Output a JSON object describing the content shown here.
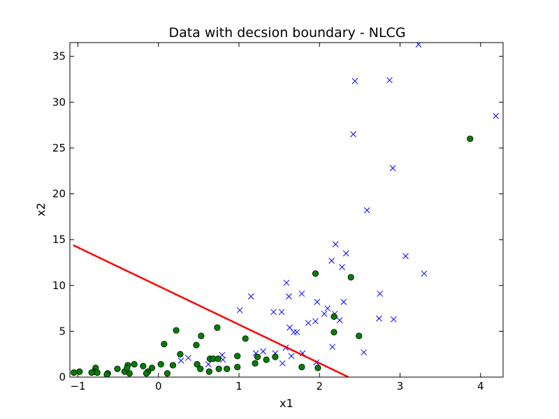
{
  "chart_data": {
    "type": "scatter",
    "title": "Data with decsion boundary - NLCG",
    "xlabel": "x1",
    "ylabel": "x2",
    "xlim": [
      -1.1,
      4.28
    ],
    "ylim": [
      0,
      36.5
    ],
    "xticks": [
      "−1",
      "0",
      "1",
      "2",
      "3",
      "4"
    ],
    "yticks": [
      "0",
      "5",
      "10",
      "15",
      "20",
      "25",
      "30",
      "35"
    ],
    "grid": false,
    "colors": {
      "positive": "#0000ff",
      "negative": "#008000",
      "boundary": "#ff0000"
    },
    "series": [
      {
        "marker": "x",
        "color": "#0000ff",
        "points": [
          [
            3.23,
            36.3
          ],
          [
            2.44,
            32.3
          ],
          [
            2.87,
            32.4
          ],
          [
            4.19,
            28.5
          ],
          [
            2.42,
            26.5
          ],
          [
            2.91,
            22.8
          ],
          [
            2.59,
            18.2
          ],
          [
            2.2,
            14.5
          ],
          [
            2.33,
            13.5
          ],
          [
            3.07,
            13.2
          ],
          [
            2.15,
            12.7
          ],
          [
            2.28,
            12.0
          ],
          [
            3.3,
            11.3
          ],
          [
            1.59,
            10.3
          ],
          [
            1.15,
            8.8
          ],
          [
            1.62,
            8.8
          ],
          [
            2.75,
            9.1
          ],
          [
            1.78,
            9.1
          ],
          [
            1.97,
            8.2
          ],
          [
            2.3,
            8.2
          ],
          [
            1.01,
            7.3
          ],
          [
            1.43,
            7.1
          ],
          [
            1.53,
            7.1
          ],
          [
            2.1,
            7.5
          ],
          [
            2.06,
            6.9
          ],
          [
            2.19,
            6.9
          ],
          [
            2.25,
            6.2
          ],
          [
            2.74,
            6.4
          ],
          [
            2.92,
            6.3
          ],
          [
            1.95,
            6.1
          ],
          [
            1.86,
            5.9
          ],
          [
            1.63,
            5.4
          ],
          [
            1.68,
            4.9
          ],
          [
            1.72,
            4.9
          ],
          [
            1.58,
            3.2
          ],
          [
            2.16,
            3.3
          ],
          [
            2.55,
            2.7
          ],
          [
            1.21,
            2.6
          ],
          [
            1.3,
            2.8
          ],
          [
            1.79,
            2.6
          ],
          [
            1.45,
            2.6
          ],
          [
            1.65,
            2.3
          ],
          [
            0.28,
            1.8
          ],
          [
            0.37,
            2.1
          ],
          [
            0.8,
            1.9
          ],
          [
            0.79,
            2.4
          ],
          [
            1.54,
            1.5
          ],
          [
            1.96,
            1.6
          ],
          [
            0.62,
            1.4
          ]
        ]
      },
      {
        "marker": "o",
        "color": "#008000",
        "points": [
          [
            3.87,
            26.0
          ],
          [
            1.95,
            11.3
          ],
          [
            2.39,
            10.9
          ],
          [
            2.18,
            6.6
          ],
          [
            0.73,
            5.4
          ],
          [
            0.22,
            5.1
          ],
          [
            0.53,
            4.5
          ],
          [
            1.08,
            4.2
          ],
          [
            2.18,
            4.9
          ],
          [
            2.49,
            4.5
          ],
          [
            0.07,
            3.6
          ],
          [
            0.47,
            3.5
          ],
          [
            0.27,
            2.5
          ],
          [
            0.64,
            2.0
          ],
          [
            0.68,
            2.0
          ],
          [
            0.74,
            2.0
          ],
          [
            0.98,
            2.3
          ],
          [
            1.45,
            2.2
          ],
          [
            1.34,
            1.9
          ],
          [
            1.23,
            2.2
          ],
          [
            1.2,
            1.5
          ],
          [
            0.48,
            1.4
          ],
          [
            0.18,
            1.3
          ],
          [
            0.03,
            1.4
          ],
          [
            -0.08,
            1.0
          ],
          [
            -0.19,
            1.2
          ],
          [
            -0.3,
            1.4
          ],
          [
            -0.38,
            1.3
          ],
          [
            -0.42,
            0.6
          ],
          [
            -0.39,
            1.0
          ],
          [
            -0.51,
            0.9
          ],
          [
            -0.78,
            1.0
          ],
          [
            -0.8,
            0.6
          ],
          [
            -0.76,
            0.5
          ],
          [
            -0.83,
            0.5
          ],
          [
            -0.98,
            0.6
          ],
          [
            -1.05,
            0.5
          ],
          [
            -0.63,
            0.4
          ],
          [
            -0.64,
            0.3
          ],
          [
            -0.36,
            0.4
          ],
          [
            -0.13,
            0.6
          ],
          [
            -0.15,
            0.4
          ],
          [
            0.11,
            0.4
          ],
          [
            0.52,
            0.9
          ],
          [
            0.63,
            0.6
          ],
          [
            0.75,
            0.9
          ],
          [
            0.85,
            0.9
          ],
          [
            0.98,
            1.1
          ],
          [
            1.78,
            1.1
          ],
          [
            1.98,
            1.0
          ]
        ]
      },
      {
        "marker": "line",
        "color": "#ff0000",
        "points": [
          [
            -1.06,
            14.4
          ],
          [
            2.36,
            0
          ]
        ]
      }
    ]
  }
}
